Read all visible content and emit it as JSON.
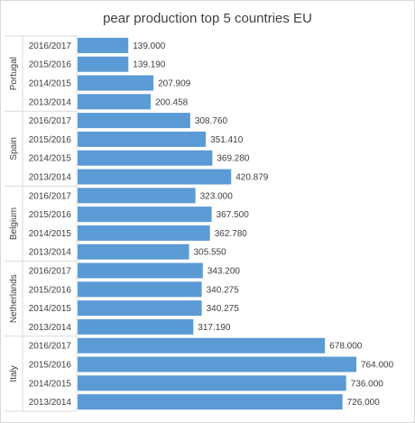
{
  "chart_data": {
    "type": "bar",
    "orientation": "horizontal",
    "title": "pear production top 5 countries EU",
    "bar_color": "#5b9bd5",
    "xlim": [
      0,
      800000
    ],
    "grid": false,
    "groups": [
      {
        "name": "Portugal",
        "categories": [
          "2016/2017",
          "2015/2016",
          "2014/2015",
          "2013/2014"
        ],
        "values": [
          139000,
          139190,
          207909,
          200458
        ],
        "labels": [
          "139.000",
          "139.190",
          "207.909",
          "200.458"
        ]
      },
      {
        "name": "Spain",
        "categories": [
          "2016/2017",
          "2015/2016",
          "2014/2015",
          "2013/2014"
        ],
        "values": [
          308760,
          351410,
          369280,
          420879
        ],
        "labels": [
          "308.760",
          "351.410",
          "369.280",
          "420.879"
        ]
      },
      {
        "name": "Belgium",
        "categories": [
          "2016/2017",
          "2015/2016",
          "2014/2015",
          "2013/2014"
        ],
        "values": [
          323000,
          367500,
          362780,
          305550
        ],
        "labels": [
          "323.000",
          "367.500",
          "362.780",
          "305.550"
        ]
      },
      {
        "name": "Netherlands",
        "categories": [
          "2016/2017",
          "2015/2016",
          "2014/2015",
          "2013/2014"
        ],
        "values": [
          343200,
          340275,
          340275,
          317190
        ],
        "labels": [
          "343.200",
          "340.275",
          "340.275",
          "317.190"
        ]
      },
      {
        "name": "Italy",
        "categories": [
          "2016/2017",
          "2015/2016",
          "2014/2015",
          "2013/2014"
        ],
        "values": [
          678000,
          764000,
          736000,
          726000
        ],
        "labels": [
          "678.000",
          "764.000",
          "736.000",
          "726.000"
        ]
      }
    ]
  }
}
